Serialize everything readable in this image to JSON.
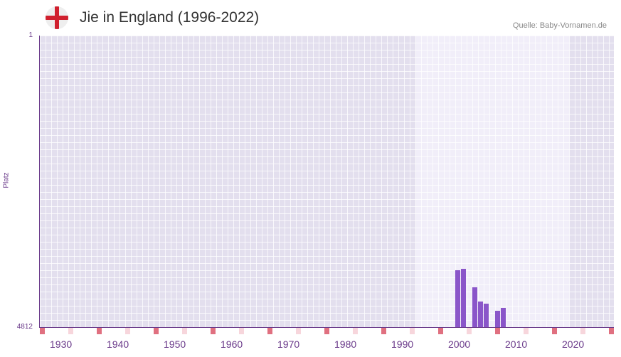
{
  "header": {
    "flag_icon": "england-flag-icon",
    "title": "Jie in England (1996-2022)",
    "source": "Quelle: Baby-Vornamen.de"
  },
  "colors": {
    "bar": "#8a55c9",
    "axis": "#6a3a8a",
    "plot_bg": "#e3dfee",
    "highlight_band": "#f1eef9",
    "decade_marker": "#e07080",
    "half_decade_marker": "#f7d6dc"
  },
  "chart_data": {
    "type": "bar",
    "title": "Jie in England (1996-2022)",
    "xlabel": "",
    "ylabel": "Platz",
    "ylim": [
      1,
      4812
    ],
    "y_inverted": true,
    "y_ticks": [
      "1",
      "4812"
    ],
    "x_ticks": [
      "1930",
      "1940",
      "1950",
      "1960",
      "1970",
      "1980",
      "1990",
      "2000",
      "2010",
      "2020"
    ],
    "xlim": [
      1928,
      2028
    ],
    "highlight_range": [
      1994,
      2021
    ],
    "grid": true,
    "legend": null,
    "categories": [
      "2001",
      "2002",
      "2004",
      "2005",
      "2006",
      "2008",
      "2009"
    ],
    "values": [
      3873,
      3850,
      4155,
      4390,
      4425,
      4545,
      4497
    ]
  }
}
